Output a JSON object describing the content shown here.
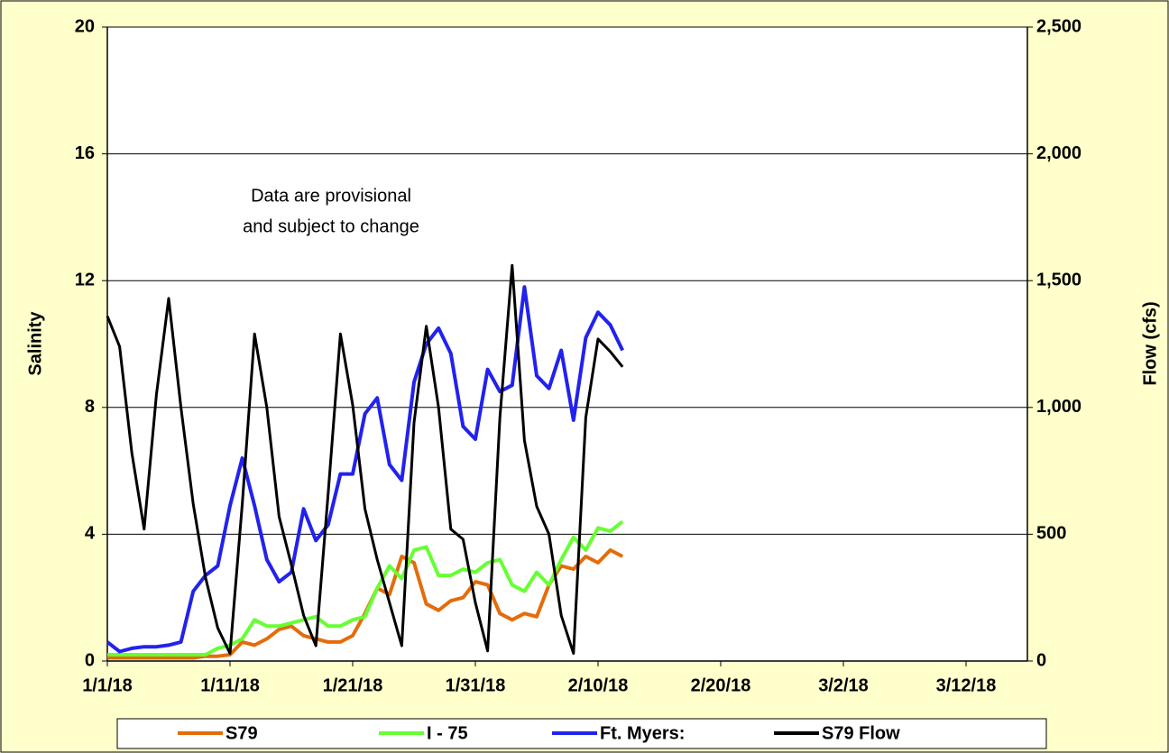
{
  "chart_data": {
    "type": "line",
    "annotation": [
      "Data are provisional",
      "and subject to change"
    ],
    "y_label": "Salinity",
    "y2_label": "Flow (cfs)",
    "x": [
      "1/1/18",
      "1/2/18",
      "1/3/18",
      "1/4/18",
      "1/5/18",
      "1/6/18",
      "1/7/18",
      "1/8/18",
      "1/9/18",
      "1/10/18",
      "1/11/18",
      "1/12/18",
      "1/13/18",
      "1/14/18",
      "1/15/18",
      "1/16/18",
      "1/17/18",
      "1/18/18",
      "1/19/18",
      "1/20/18",
      "1/21/18",
      "1/22/18",
      "1/23/18",
      "1/24/18",
      "1/25/18",
      "1/26/18",
      "1/27/18",
      "1/28/18",
      "1/29/18",
      "1/30/18",
      "1/31/18",
      "2/1/18",
      "2/2/18",
      "2/3/18",
      "2/4/18",
      "2/5/18",
      "2/6/18",
      "2/7/18",
      "2/8/18",
      "2/9/18",
      "2/10/18",
      "2/11/18",
      "2/12/18"
    ],
    "xlim": [
      "1/1/18",
      "3/17/18"
    ],
    "xticks": [
      "1/1/18",
      "1/11/18",
      "1/21/18",
      "1/31/18",
      "2/10/18",
      "2/20/18",
      "3/2/18",
      "3/12/18"
    ],
    "ylim": [
      0,
      20
    ],
    "yticks": [
      0,
      4,
      8,
      12,
      16,
      20
    ],
    "y2lim": [
      0,
      2500
    ],
    "y2ticks": [
      0,
      500,
      {
        "value": 1000,
        "label": "1,000"
      },
      {
        "value": 1500,
        "label": "1,500"
      },
      {
        "value": 2000,
        "label": "2,000"
      },
      {
        "value": 2500,
        "label": "2,500"
      }
    ],
    "grid": true,
    "series": [
      {
        "name": "S79",
        "color": "#e46c0a",
        "values": [
          0.1,
          0.1,
          0.1,
          0.1,
          0.1,
          0.1,
          0.1,
          0.1,
          0.15,
          0.15,
          0.2,
          0.6,
          0.5,
          0.7,
          1.0,
          1.1,
          0.8,
          0.7,
          0.6,
          0.6,
          0.8,
          1.5,
          2.3,
          2.1,
          3.3,
          3.1,
          1.8,
          1.6,
          1.9,
          2.0,
          2.5,
          2.4,
          1.5,
          1.3,
          1.5,
          1.4,
          2.4,
          3.0,
          2.9,
          3.3,
          3.1,
          3.5,
          3.3
        ]
      },
      {
        "name": "I - 75",
        "color": "#66ff33",
        "values": [
          0.2,
          0.2,
          0.2,
          0.2,
          0.2,
          0.2,
          0.2,
          0.2,
          0.2,
          0.4,
          0.5,
          0.7,
          1.3,
          1.1,
          1.1,
          1.2,
          1.3,
          1.4,
          1.1,
          1.1,
          1.3,
          1.4,
          2.3,
          3.0,
          2.6,
          3.5,
          3.6,
          2.7,
          2.7,
          2.9,
          2.8,
          3.1,
          3.2,
          2.4,
          2.2,
          2.8,
          2.4,
          3.2,
          3.9,
          3.5,
          4.2,
          4.1,
          4.4
        ]
      },
      {
        "name": "Ft. Myers:",
        "color": "#2222ee",
        "values": [
          0.6,
          0.3,
          0.4,
          0.45,
          0.45,
          0.5,
          0.6,
          2.2,
          2.7,
          3.0,
          4.9,
          6.4,
          4.9,
          3.2,
          2.5,
          2.8,
          4.8,
          3.8,
          4.3,
          5.9,
          5.9,
          7.8,
          8.3,
          6.2,
          5.7,
          8.8,
          10.0,
          10.5,
          9.7,
          7.4,
          7.0,
          9.2,
          8.5,
          8.7,
          11.8,
          9.0,
          8.6,
          9.8,
          7.6,
          10.2,
          11.0,
          10.6,
          9.8
        ]
      },
      {
        "name": "S79 Flow",
        "color": "#000000",
        "axis": "y2",
        "values": [
          1360,
          1240,
          820,
          520,
          1050,
          1430,
          1000,
          620,
          330,
          130,
          30,
          620,
          1290,
          1000,
          570,
          380,
          180,
          60,
          660,
          1290,
          1010,
          600,
          400,
          230,
          60,
          940,
          1320,
          1000,
          520,
          480,
          230,
          40,
          960,
          1560,
          870,
          610,
          500,
          180,
          30,
          960,
          1270,
          1220,
          1160
        ]
      }
    ]
  }
}
